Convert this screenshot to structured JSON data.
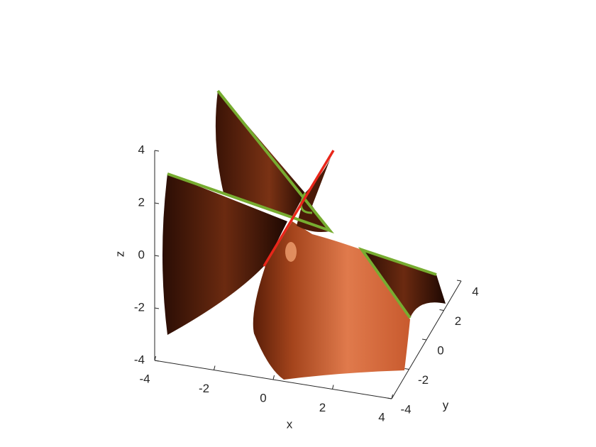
{
  "chart_data": {
    "type": "surface3d",
    "xlabel": "x",
    "ylabel": "y",
    "zlabel": "z",
    "xlim": [
      -4,
      4
    ],
    "ylim": [
      -4,
      4
    ],
    "zlim": [
      -4,
      4
    ],
    "xticks": [
      -4,
      -2,
      0,
      2,
      4
    ],
    "yticks": [
      -4,
      -2,
      0,
      2,
      4
    ],
    "zticks": [
      -4,
      -2,
      0,
      2,
      4
    ],
    "color": "#c8552a",
    "edge_color": "#77ac30",
    "line_color": "#e8261a"
  }
}
